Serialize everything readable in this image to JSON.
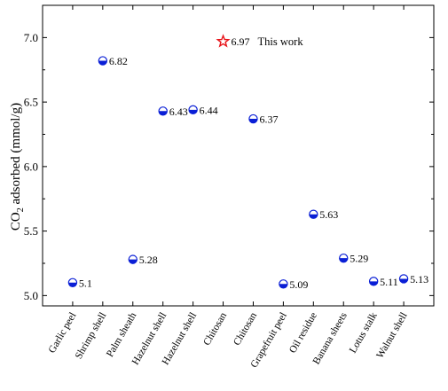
{
  "chart_data": {
    "type": "scatter",
    "ylabel_main": "CO",
    "ylabel_sub": "2",
    "ylabel_rest": " adsorbed (mmol/g)",
    "ylim": [
      4.92,
      7.25
    ],
    "yticks": [
      "5.0",
      "5.5",
      "6.0",
      "6.5",
      "7.0"
    ],
    "categories": [
      "Garlic peel",
      "Shrimp shell",
      "Palm sheath",
      "Hazelnut shell",
      "Hazelnut shell",
      "Chitosan",
      "Chitosan",
      "Grapefruit peel",
      "Oil residue",
      "Banana sheets",
      "Lotus stalk",
      "Walnut shell"
    ],
    "values": [
      5.1,
      6.82,
      5.28,
      6.43,
      6.44,
      6.97,
      6.37,
      5.09,
      5.63,
      5.29,
      5.11,
      5.13
    ],
    "labels": [
      "5.1",
      "6.82",
      "5.28",
      "6.43",
      "6.44",
      "6.97",
      "6.37",
      "5.09",
      "5.63",
      "5.29",
      "5.11",
      "5.13"
    ],
    "highlight_index": 5,
    "highlight_text": "This work",
    "colors": {
      "point": "#0a1fd6",
      "highlight": "#e8141a",
      "axis": "#000000"
    }
  }
}
